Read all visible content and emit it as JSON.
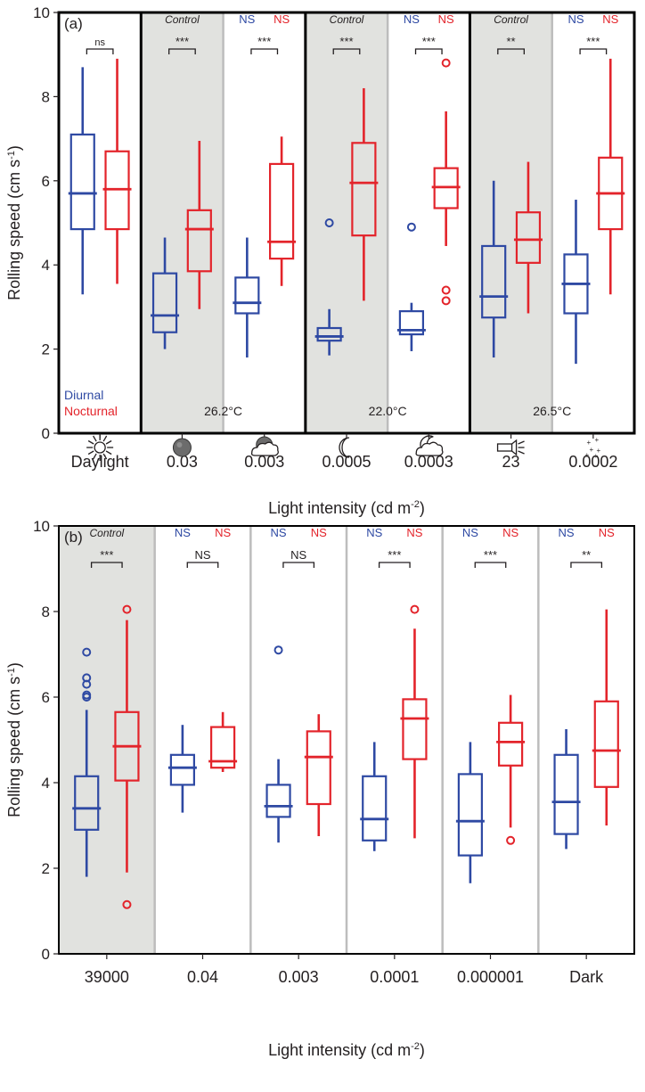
{
  "colors": {
    "diurnal": "#2e49a3",
    "nocturnal": "#e3242b",
    "shade": "#e1e2df",
    "border": "#000000",
    "divider": "#bdbdbd",
    "text": "#231f20"
  },
  "chart_data": [
    {
      "type": "boxplot",
      "panel_label": "(a)",
      "ylabel": "Rolling speed (cm s",
      "ylabel_sup": "-1",
      "ylabel_close": ")",
      "xlabel": "Light intensity (cd m",
      "xlabel_sup": "-2",
      "xlabel_close": ")",
      "ylim": [
        0,
        10
      ],
      "yticks": [
        "0",
        "2",
        "4",
        "6",
        "8",
        "10"
      ],
      "legend": {
        "diurnal": "Diurnal",
        "nocturnal": "Nocturnal",
        "placement": "bottom-left"
      },
      "temperatures": [
        "26.2°C",
        "22.0°C",
        "26.5°C"
      ],
      "groups": [
        {
          "label": "Daylight",
          "icon": "sun-icon",
          "shaded": false,
          "control": "",
          "ns_d": "",
          "ns_n": "",
          "sig": "ns",
          "sig_y": 9.45,
          "diurnal": {
            "whisker_low": 3.3,
            "q1": 4.85,
            "median": 5.7,
            "q3": 7.1,
            "whisker_high": 8.7,
            "outliers": []
          },
          "nocturnal": {
            "whisker_low": 3.55,
            "q1": 4.85,
            "median": 5.8,
            "q3": 6.7,
            "whisker_high": 8.9,
            "outliers": []
          }
        },
        {
          "label": "0.03",
          "icon": "full-moon-icon",
          "shaded": true,
          "control": "Control",
          "ns_d": "",
          "ns_n": "",
          "sig": "***",
          "sig_y": 9.45,
          "diurnal": {
            "whisker_low": 2.0,
            "q1": 2.4,
            "median": 2.8,
            "q3": 3.8,
            "whisker_high": 4.65,
            "outliers": []
          },
          "nocturnal": {
            "whisker_low": 2.95,
            "q1": 3.85,
            "median": 4.85,
            "q3": 5.3,
            "whisker_high": 6.95,
            "outliers": []
          }
        },
        {
          "label": "0.003",
          "icon": "cloudy-moon-icon",
          "shaded": false,
          "control": "",
          "ns_d": "NS",
          "ns_n": "NS",
          "sig": "***",
          "sig_y": 9.45,
          "diurnal": {
            "whisker_low": 1.8,
            "q1": 2.85,
            "median": 3.1,
            "q3": 3.7,
            "whisker_high": 4.65,
            "outliers": []
          },
          "nocturnal": {
            "whisker_low": 3.5,
            "q1": 4.15,
            "median": 4.55,
            "q3": 6.4,
            "whisker_high": 7.05,
            "outliers": []
          }
        },
        {
          "label": "0.0005",
          "icon": "crescent-moon-icon",
          "shaded": true,
          "control": "Control",
          "ns_d": "",
          "ns_n": "",
          "sig": "***",
          "sig_y": 9.45,
          "diurnal": {
            "whisker_low": 1.85,
            "q1": 2.2,
            "median": 2.3,
            "q3": 2.5,
            "whisker_high": 2.95,
            "outliers": [
              5.0
            ]
          },
          "nocturnal": {
            "whisker_low": 3.15,
            "q1": 4.7,
            "median": 5.95,
            "q3": 6.9,
            "whisker_high": 8.2,
            "outliers": []
          }
        },
        {
          "label": "0.0003",
          "icon": "cloudy-crescent-icon",
          "shaded": false,
          "control": "",
          "ns_d": "NS",
          "ns_n": "NS",
          "sig": "***",
          "sig_y": 9.45,
          "diurnal": {
            "whisker_low": 1.95,
            "q1": 2.35,
            "median": 2.45,
            "q3": 2.9,
            "whisker_high": 3.1,
            "outliers": [
              4.9
            ]
          },
          "nocturnal": {
            "whisker_low": 4.45,
            "q1": 5.35,
            "median": 5.85,
            "q3": 6.3,
            "whisker_high": 7.65,
            "outliers": [
              3.15,
              3.4,
              8.8
            ]
          }
        },
        {
          "label": "23",
          "icon": "flashlight-icon",
          "shaded": true,
          "control": "Control",
          "ns_d": "",
          "ns_n": "",
          "sig": "**",
          "sig_y": 9.45,
          "diurnal": {
            "whisker_low": 1.8,
            "q1": 2.75,
            "median": 3.25,
            "q3": 4.45,
            "whisker_high": 6.0,
            "outliers": []
          },
          "nocturnal": {
            "whisker_low": 2.85,
            "q1": 4.05,
            "median": 4.6,
            "q3": 5.25,
            "whisker_high": 6.45,
            "outliers": []
          }
        },
        {
          "label": "0.0002",
          "icon": "stars-icon",
          "shaded": false,
          "control": "",
          "ns_d": "NS",
          "ns_n": "NS",
          "sig": "***",
          "sig_y": 9.45,
          "diurnal": {
            "whisker_low": 1.65,
            "q1": 2.85,
            "median": 3.55,
            "q3": 4.25,
            "whisker_high": 5.55,
            "outliers": []
          },
          "nocturnal": {
            "whisker_low": 3.3,
            "q1": 4.85,
            "median": 5.7,
            "q3": 6.55,
            "whisker_high": 8.9,
            "outliers": []
          }
        }
      ]
    },
    {
      "type": "boxplot",
      "panel_label": "(b)",
      "ylabel": "Rolling speed (cm s",
      "ylabel_sup": "-1",
      "ylabel_close": ")",
      "xlabel": "Light intensity (cd m",
      "xlabel_sup": "-2",
      "xlabel_close": ")",
      "ylim": [
        0,
        10
      ],
      "yticks": [
        "0",
        "2",
        "4",
        "6",
        "8",
        "10"
      ],
      "groups": [
        {
          "label": "39000",
          "shaded": true,
          "control": "Control",
          "ns_d": "",
          "ns_n": "",
          "sig": "***",
          "sig_y": 9.55,
          "diurnal": {
            "whisker_low": 1.8,
            "q1": 2.9,
            "median": 3.4,
            "q3": 4.15,
            "whisker_high": 5.7,
            "outliers": [
              6.0,
              6.05,
              6.3,
              6.45,
              7.05
            ]
          },
          "nocturnal": {
            "whisker_low": 1.9,
            "q1": 4.05,
            "median": 4.85,
            "q3": 5.65,
            "whisker_high": 7.8,
            "outliers": [
              1.15,
              8.05
            ]
          }
        },
        {
          "label": "0.04",
          "shaded": false,
          "control": "",
          "ns_d": "NS",
          "ns_n": "NS",
          "sig": "NS",
          "sig_y": 9.55,
          "diurnal": {
            "whisker_low": 3.3,
            "q1": 3.95,
            "median": 4.35,
            "q3": 4.65,
            "whisker_high": 5.35,
            "outliers": []
          },
          "nocturnal": {
            "whisker_low": 4.25,
            "q1": 4.35,
            "median": 4.5,
            "q3": 5.3,
            "whisker_high": 5.65,
            "outliers": []
          }
        },
        {
          "label": "0.003",
          "shaded": false,
          "control": "",
          "ns_d": "NS",
          "ns_n": "NS",
          "sig": "NS",
          "sig_y": 9.55,
          "diurnal": {
            "whisker_low": 2.6,
            "q1": 3.2,
            "median": 3.45,
            "q3": 3.95,
            "whisker_high": 4.55,
            "outliers": [
              7.1
            ]
          },
          "nocturnal": {
            "whisker_low": 2.75,
            "q1": 3.5,
            "median": 4.6,
            "q3": 5.2,
            "whisker_high": 5.6,
            "outliers": []
          }
        },
        {
          "label": "0.0001",
          "shaded": false,
          "control": "",
          "ns_d": "NS",
          "ns_n": "NS",
          "sig": "***",
          "sig_y": 9.55,
          "diurnal": {
            "whisker_low": 2.4,
            "q1": 2.65,
            "median": 3.15,
            "q3": 4.15,
            "whisker_high": 4.95,
            "outliers": []
          },
          "nocturnal": {
            "whisker_low": 2.7,
            "q1": 4.55,
            "median": 5.5,
            "q3": 5.95,
            "whisker_high": 7.6,
            "outliers": [
              8.05
            ]
          }
        },
        {
          "label": "0.000001",
          "shaded": false,
          "control": "",
          "ns_d": "NS",
          "ns_n": "NS",
          "sig": "***",
          "sig_y": 9.55,
          "diurnal": {
            "whisker_low": 1.65,
            "q1": 2.3,
            "median": 3.1,
            "q3": 4.2,
            "whisker_high": 4.95,
            "outliers": []
          },
          "nocturnal": {
            "whisker_low": 2.95,
            "q1": 4.4,
            "median": 4.95,
            "q3": 5.4,
            "whisker_high": 6.05,
            "outliers": [
              2.65
            ]
          }
        },
        {
          "label": "Dark",
          "shaded": false,
          "control": "",
          "ns_d": "NS",
          "ns_n": "NS",
          "sig": "**",
          "sig_y": 9.55,
          "diurnal": {
            "whisker_low": 2.45,
            "q1": 2.8,
            "median": 3.55,
            "q3": 4.65,
            "whisker_high": 5.25,
            "outliers": []
          },
          "nocturnal": {
            "whisker_low": 3.0,
            "q1": 3.9,
            "median": 4.75,
            "q3": 5.9,
            "whisker_high": 8.05,
            "outliers": []
          }
        }
      ]
    }
  ]
}
